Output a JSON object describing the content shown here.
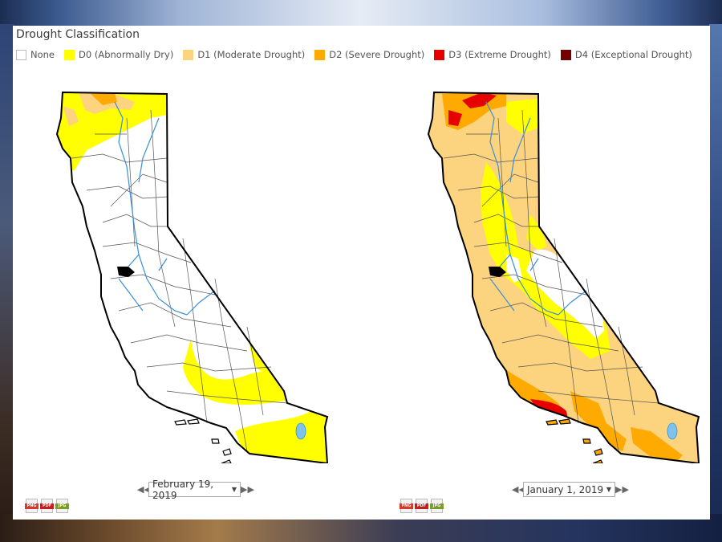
{
  "title": "Drought Classification",
  "legend": [
    {
      "label": "None",
      "color": "#ffffff"
    },
    {
      "label": "D0 (Abnormally Dry)",
      "color": "#ffff00"
    },
    {
      "label": "D1 (Moderate Drought)",
      "color": "#fcd37f"
    },
    {
      "label": "D2 (Severe Drought)",
      "color": "#ffaa00"
    },
    {
      "label": "D3 (Extreme Drought)",
      "color": "#e60000"
    },
    {
      "label": "D4 (Exceptional Drought)",
      "color": "#730000"
    }
  ],
  "maps": [
    {
      "date": "February 19, 2019",
      "region": "California"
    },
    {
      "date": "January 1, 2019",
      "region": "California"
    }
  ],
  "exports": [
    "PNG",
    "PDF",
    "JPG"
  ],
  "colors": {
    "river": "#3a8fd8",
    "outline": "#000000",
    "county": "#555555"
  }
}
